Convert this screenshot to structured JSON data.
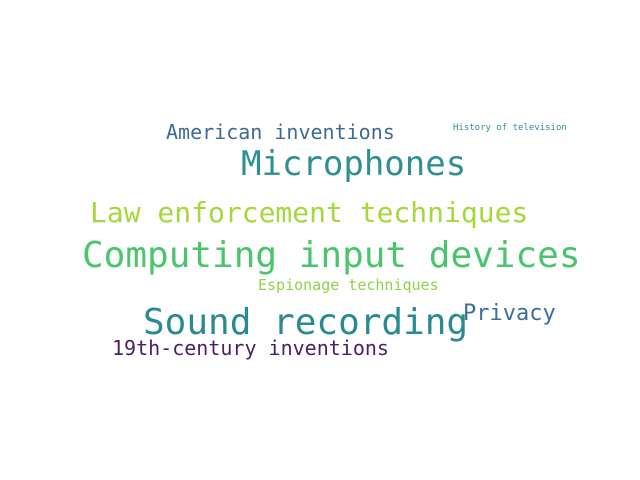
{
  "words": [
    {
      "id": "american",
      "text": "American inventions",
      "color": "#3f6a96"
    },
    {
      "id": "history",
      "text": "History of television",
      "color": "#2f8f9a"
    },
    {
      "id": "micro",
      "text": "Microphones",
      "color": "#2e9090"
    },
    {
      "id": "law",
      "text": "Law enforcement techniques",
      "color": "#a5d83a"
    },
    {
      "id": "computing",
      "text": "Computing input devices",
      "color": "#4bc56c"
    },
    {
      "id": "espionage",
      "text": "Espionage techniques",
      "color": "#8fd24a"
    },
    {
      "id": "sound",
      "text": "Sound recording",
      "color": "#298a90"
    },
    {
      "id": "privacy",
      "text": "Privacy",
      "color": "#3b6e99"
    },
    {
      "id": "nineteenth",
      "text": "19th-century inventions",
      "color": "#4a1f63"
    }
  ]
}
